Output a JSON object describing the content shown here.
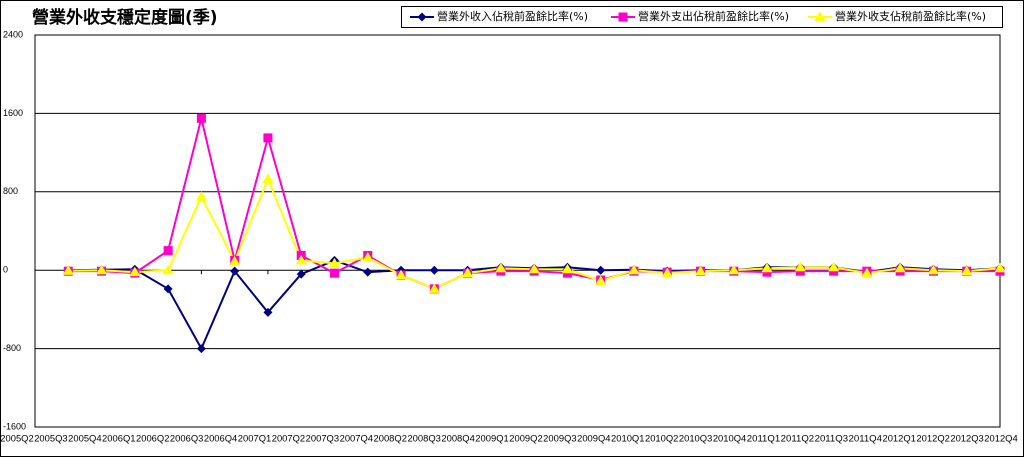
{
  "chart_data": {
    "type": "line",
    "title": "營業外收支穩定度圖(季)",
    "categories": [
      "2005Q2",
      "2005Q3",
      "2005Q4",
      "2006Q1",
      "2006Q2",
      "2006Q3",
      "2006Q4",
      "2007Q1",
      "2007Q2",
      "2007Q3",
      "2007Q4",
      "2008Q2",
      "2008Q3",
      "2008Q4",
      "2009Q1",
      "2009Q2",
      "2009Q3",
      "2009Q4",
      "2010Q1",
      "2010Q2",
      "2010Q3",
      "2010Q4",
      "2011Q1",
      "2011Q2",
      "2011Q3",
      "2011Q4",
      "2012Q1",
      "2012Q2",
      "2012Q3",
      "2012Q4"
    ],
    "series": [
      {
        "name": "營業外收入佔稅前盈餘比率(%)",
        "color": "#000080",
        "marker": "diamond",
        "values": [
          null,
          0,
          5,
          10,
          -190,
          -800,
          -10,
          -430,
          -40,
          100,
          -20,
          0,
          0,
          0,
          30,
          20,
          30,
          0,
          5,
          -10,
          0,
          0,
          30,
          30,
          30,
          -20,
          30,
          10,
          0,
          20
        ]
      },
      {
        "name": "營業外支出佔稅前盈餘比率(%)",
        "color": "#ff00cc",
        "marker": "square",
        "values": [
          null,
          -10,
          -10,
          -30,
          200,
          1550,
          100,
          1350,
          150,
          -30,
          150,
          -50,
          -190,
          -30,
          -10,
          -10,
          -30,
          -100,
          -10,
          -20,
          -10,
          -10,
          -20,
          -10,
          -10,
          -10,
          -10,
          -10,
          -10,
          -10
        ]
      },
      {
        "name": "營業外收支佔稅前盈餘比率(%)",
        "color": "#ffff00",
        "marker": "triangle",
        "values": [
          null,
          -5,
          0,
          -20,
          0,
          750,
          90,
          930,
          100,
          70,
          130,
          -50,
          -190,
          -30,
          20,
          10,
          10,
          -110,
          0,
          -30,
          -10,
          0,
          20,
          30,
          30,
          -30,
          20,
          0,
          -10,
          20
        ]
      }
    ],
    "ylim": [
      -1600,
      2400
    ],
    "yticks": [
      -1600,
      -800,
      0,
      800,
      1600,
      2400
    ],
    "grid": true
  }
}
